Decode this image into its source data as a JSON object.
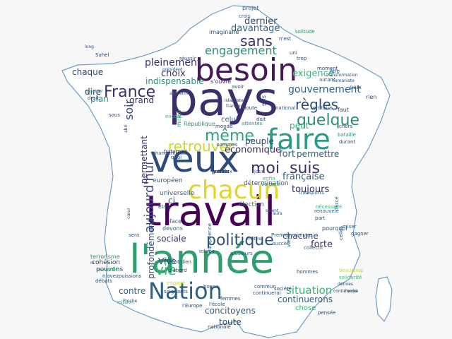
{
  "colors": {
    "background": "#f7f7f7",
    "map_fill": "#ffffff",
    "map_outline": "#6f9cc6",
    "palette": [
      "#440154",
      "#3b528b",
      "#21918c",
      "#5ec962",
      "#fde725"
    ]
  },
  "words": [
    {
      "text": "pays",
      "color": "#3b2f6b"
    },
    {
      "text": "travail",
      "color": "#440154"
    },
    {
      "text": "l'année",
      "color": "#2f9e6e"
    },
    {
      "text": "veux",
      "color": "#2c4a7a"
    },
    {
      "text": "besoin",
      "color": "#46185a"
    },
    {
      "text": "faire",
      "color": "#2a9b85"
    },
    {
      "text": "chacun",
      "color": "#e0d52c"
    },
    {
      "text": "Nation",
      "color": "#2d5f80"
    },
    {
      "text": "politique",
      "color": "#2d4f7a"
    },
    {
      "text": "quelque",
      "color": "#2f8d7a"
    },
    {
      "text": "retrouver",
      "color": "#c8d92c"
    },
    {
      "text": "moi",
      "color": "#3b2f6b"
    },
    {
      "text": "suis",
      "color": "#3b2f6b"
    },
    {
      "text": "règles",
      "color": "#2c4a7a"
    },
    {
      "text": "même",
      "color": "#31a37a"
    },
    {
      "text": "France",
      "color": "#3b2f6b"
    },
    {
      "text": "sans",
      "color": "#3b2f6b"
    },
    {
      "text": "engagement",
      "color": "#2f8d7a"
    },
    {
      "text": "vie",
      "color": "#35b779"
    },
    {
      "text": "situation",
      "color": "#35b779"
    },
    {
      "text": "aujourd'hui",
      "color": "#3e4a89"
    },
    {
      "text": "soir",
      "color": "#2c4a7a"
    },
    {
      "text": "gouvernement",
      "color": "#2d5f80"
    },
    {
      "text": "exigence",
      "color": "#35b779"
    },
    {
      "text": "pleinement",
      "color": "#3b2f6b"
    },
    {
      "text": "dernier",
      "color": "#2c4a7a"
    },
    {
      "text": "davantage",
      "color": "#2d5f80"
    },
    {
      "text": "chaque",
      "color": "#2c4a7a"
    },
    {
      "text": "choix",
      "color": "#3b2f6b"
    },
    {
      "text": "indispensable",
      "color": "#2f8d7a"
    },
    {
      "text": "dire",
      "color": "#3b2f6b"
    },
    {
      "text": "plan",
      "color": "#2f8d7a"
    },
    {
      "text": "grand",
      "color": "#3b2f6b"
    },
    {
      "text": "peut",
      "color": "#35b779"
    },
    {
      "text": "fort",
      "color": "#2d5f80"
    },
    {
      "text": "permettre",
      "color": "#2d5f80"
    },
    {
      "text": "économique",
      "color": "#3b2f6b"
    },
    {
      "text": "peuple",
      "color": "#2c4a7a"
    },
    {
      "text": "française",
      "color": "#2d5f80"
    },
    {
      "text": "toujours",
      "color": "#3b2f6b"
    },
    {
      "text": "ci",
      "color": "#2d5f80"
    },
    {
      "text": "sociale",
      "color": "#3b2f6b"
    },
    {
      "text": "chacune",
      "color": "#2c4a7a"
    },
    {
      "text": "forte",
      "color": "#3b2f6b"
    },
    {
      "text": "concitoyens",
      "color": "#2d5f80"
    },
    {
      "text": "contre",
      "color": "#2d5f80"
    },
    {
      "text": "toute",
      "color": "#2c4a7a"
    },
    {
      "text": "continuerons",
      "color": "#2d5f80"
    },
    {
      "text": "chose",
      "color": "#35b779"
    },
    {
      "text": "permettant",
      "color": "#3b2f6b"
    },
    {
      "text": "Vive",
      "color": "#2c4a7a"
    },
    {
      "text": "profondément",
      "color": "#2c4a7a"
    },
    {
      "text": "celui",
      "color": "#2d5f80"
    },
    {
      "text": "République",
      "color": "#2f8d7a"
    },
    {
      "text": "européen",
      "color": "#2d5f80"
    },
    {
      "text": "universelle",
      "color": "#2d5f80"
    },
    {
      "text": "détermination",
      "color": "#2d5f80"
    },
    {
      "text": "élection",
      "color": "#2d5f80"
    },
    {
      "text": "devons",
      "color": "#2d5f80"
    },
    {
      "text": "face",
      "color": "#2d5f80"
    },
    {
      "text": "cohésion",
      "color": "#2c4a7a"
    },
    {
      "text": "pouvons",
      "color": "#2c4a7a"
    },
    {
      "text": "terrorisme",
      "color": "#2f8d7a"
    },
    {
      "text": "assurer",
      "color": "#2f8d7a"
    },
    {
      "text": "droit",
      "color": "#2c4a7a"
    },
    {
      "text": "Sahel",
      "color": "#2c4a7a"
    },
    {
      "text": "imaginaire",
      "color": "#2c4a7a"
    },
    {
      "text": "projet",
      "color": "#2d5f80"
    },
    {
      "text": "crois",
      "color": "#2d5f80"
    },
    {
      "text": "n'est",
      "color": "#2c4a7a"
    },
    {
      "text": "uni",
      "color": "#2c4a7a"
    },
    {
      "text": "trop",
      "color": "#2c4a7a"
    },
    {
      "text": "solitude",
      "color": "#2f8d7a"
    },
    {
      "text": "s'ouvre",
      "color": "#3b2f6b"
    },
    {
      "text": "réussir",
      "color": "#2c4a7a"
    },
    {
      "text": "moment",
      "color": "#2c4a7a"
    },
    {
      "text": "être",
      "color": "#2c4a7a"
    },
    {
      "text": "autant",
      "color": "#2d5f80"
    },
    {
      "text": "paix",
      "color": "#2d5f80"
    },
    {
      "text": "faut",
      "color": "#2c4a7a"
    },
    {
      "text": "rien",
      "color": "#2c4a7a"
    },
    {
      "text": "chers",
      "color": "#2c4a7a"
    },
    {
      "text": "bataille",
      "color": "#2f8d7a"
    },
    {
      "text": "durant",
      "color": "#2c4a7a"
    },
    {
      "text": "avoir",
      "color": "#2c4a7a"
    },
    {
      "text": "s'ils",
      "color": "#2c4a7a"
    },
    {
      "text": "doit",
      "color": "#2c4a7a"
    },
    {
      "text": "national",
      "color": "#2d5f80"
    },
    {
      "text": "territoire",
      "color": "#2d5f80"
    },
    {
      "text": "milieu",
      "color": "#2f8d7a"
    },
    {
      "text": "encore",
      "color": "#35b779"
    },
    {
      "text": "changements",
      "color": "#2d5f80"
    },
    {
      "text": "fraternité",
      "color": "#3b2f6b"
    },
    {
      "text": "quoi",
      "color": "#2c4a7a"
    },
    {
      "text": "sommes",
      "color": "#2c4a7a"
    },
    {
      "text": "monde",
      "color": "#2c4a7a"
    },
    {
      "text": "doute",
      "color": "#2c4a7a"
    },
    {
      "text": "jour",
      "color": "#2d5f80"
    },
    {
      "text": "enfin",
      "color": "#35b779"
    },
    {
      "text": "volonté",
      "color": "#2f8d7a"
    },
    {
      "text": "transports",
      "color": "#2d5f80"
    },
    {
      "text": "nécessaire",
      "color": "#35b779"
    },
    {
      "text": "renouvelé",
      "color": "#2d5f80"
    },
    {
      "text": "part",
      "color": "#2c4a7a"
    },
    {
      "text": "pourquoi",
      "color": "#2c4a7a"
    },
    {
      "text": "celles",
      "color": "#2c4a7a"
    },
    {
      "text": "gagner",
      "color": "#2c4a7a"
    },
    {
      "text": "miser",
      "color": "#2d5f80"
    },
    {
      "text": "force",
      "color": "#2d5f80"
    },
    {
      "text": "collectif",
      "color": "#2d5f80"
    },
    {
      "text": "vœux",
      "color": "#2c4a7a"
    },
    {
      "text": "Premier ministre",
      "color": "#2d5f80"
    },
    {
      "text": "succès",
      "color": "#2d5f80"
    },
    {
      "text": "intime",
      "color": "#2c4a7a"
    },
    {
      "text": "plusieurs",
      "color": "#2d5f80"
    },
    {
      "text": "européenne",
      "color": "#2d5f80"
    },
    {
      "text": "beaucoup",
      "color": "#c8d92c"
    },
    {
      "text": "hommes",
      "color": "#2c4a7a"
    },
    {
      "text": "solidarité",
      "color": "#35b779"
    },
    {
      "text": "société",
      "color": "#2c4a7a"
    },
    {
      "text": "commun",
      "color": "#2c4a7a"
    },
    {
      "text": "continuerai",
      "color": "#2c4a7a"
    },
    {
      "text": "femmes",
      "color": "#2c4a7a"
    },
    {
      "text": "l'école",
      "color": "#2c4a7a"
    },
    {
      "text": "l'Europe",
      "color": "#2c4a7a"
    },
    {
      "text": "nationale",
      "color": "#2c4a7a"
    },
    {
      "text": "pensée",
      "color": "#2c4a7a"
    },
    {
      "text": "quotidien",
      "color": "#2d5f80"
    },
    {
      "text": "d'abord",
      "color": "#2c4a7a"
    },
    {
      "text": "engagé",
      "color": "#c8d92c"
    },
    {
      "text": "soignants",
      "color": "#2c4a7a"
    },
    {
      "text": "bonne",
      "color": "#2c4a7a"
    },
    {
      "text": "nouvelle",
      "color": "#35b779"
    },
    {
      "text": "n'avezpuissions",
      "color": "#2c4a7a"
    },
    {
      "text": "débats",
      "color": "#2c4a7a"
    },
    {
      "text": "Proche",
      "color": "#2c4a7a"
    },
    {
      "text": "mission",
      "color": "#2f8d7a"
    },
    {
      "text": "ni",
      "color": "#2c4a7a"
    },
    {
      "text": "sera",
      "color": "#2c4a7a"
    },
    {
      "text": "avez",
      "color": "#2c4a7a"
    },
    {
      "text": "États",
      "color": "#2c4a7a"
    },
    {
      "text": "attentes",
      "color": "#2f8d7a"
    },
    {
      "text": "sous",
      "color": "#2c4a7a"
    },
    {
      "text": "abri",
      "color": "#2c4a7a"
    },
    {
      "text": "long",
      "color": "#2c4a7a"
    },
    {
      "text": "président",
      "color": "#2d5f80"
    },
    {
      "text": "cœur",
      "color": "#2c4a7a"
    },
    {
      "text": "transformation",
      "color": "#2c4a7a"
    },
    {
      "text": "humaniste",
      "color": "#2c4a7a"
    },
    {
      "text": "accueillir",
      "color": "#2d5f80"
    },
    {
      "text": "islamiste",
      "color": "#2c4a7a"
    },
    {
      "text": "français",
      "color": "#2c4a7a"
    },
    {
      "text": "l'ordre",
      "color": "#2c4a7a"
    },
    {
      "text": "dérives",
      "color": "#2c4a7a"
    },
    {
      "text": "continuerai",
      "color": "#2c4a7a"
    },
    {
      "text": "mettre",
      "color": "#2c4a7a"
    },
    {
      "text": "soient",
      "color": "#2c4a7a"
    },
    {
      "text": "aura",
      "color": "#2c4a7a"
    },
    {
      "text": "qu'une",
      "color": "#2c4a7a"
    },
    {
      "text": "heureux",
      "color": "#2c4a7a"
    },
    {
      "text": "entre",
      "color": "#2c4a7a"
    },
    {
      "text": "grands",
      "color": "#2c4a7a"
    },
    {
      "text": "jamais",
      "color": "#2c4a7a"
    }
  ]
}
